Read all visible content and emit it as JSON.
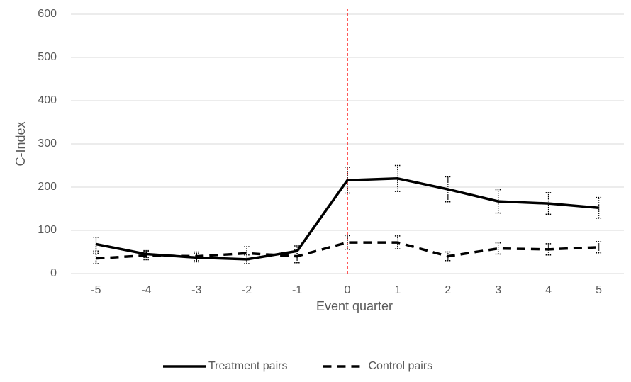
{
  "chart_data": {
    "type": "line",
    "x_label": "Event quarter",
    "y_label": "C-Index",
    "categories": [
      "-5",
      "-4",
      "-3",
      "-2",
      "-1",
      "0",
      "1",
      "2",
      "3",
      "4",
      "5"
    ],
    "series": [
      {
        "name": "Treatment pairs",
        "color": "#000000",
        "dash": false,
        "values": [
          68,
          45,
          37,
          33,
          52,
          216,
          220,
          195,
          167,
          162,
          152
        ],
        "errors": [
          16,
          8,
          10,
          10,
          12,
          30,
          30,
          29,
          27,
          25,
          24
        ]
      },
      {
        "name": "Control pairs",
        "color": "#000000",
        "dash": true,
        "values": [
          35,
          42,
          40,
          47,
          40,
          72,
          72,
          40,
          58,
          56,
          61
        ],
        "errors": [
          12,
          10,
          10,
          15,
          15,
          16,
          15,
          10,
          13,
          13,
          13
        ]
      }
    ],
    "ylim": [
      0,
      600
    ],
    "yticks": [
      0,
      100,
      200,
      300,
      400,
      500,
      600
    ],
    "grid": true,
    "reference_line": {
      "category": "0",
      "color": "#ff0000"
    },
    "legend": "bottom"
  }
}
